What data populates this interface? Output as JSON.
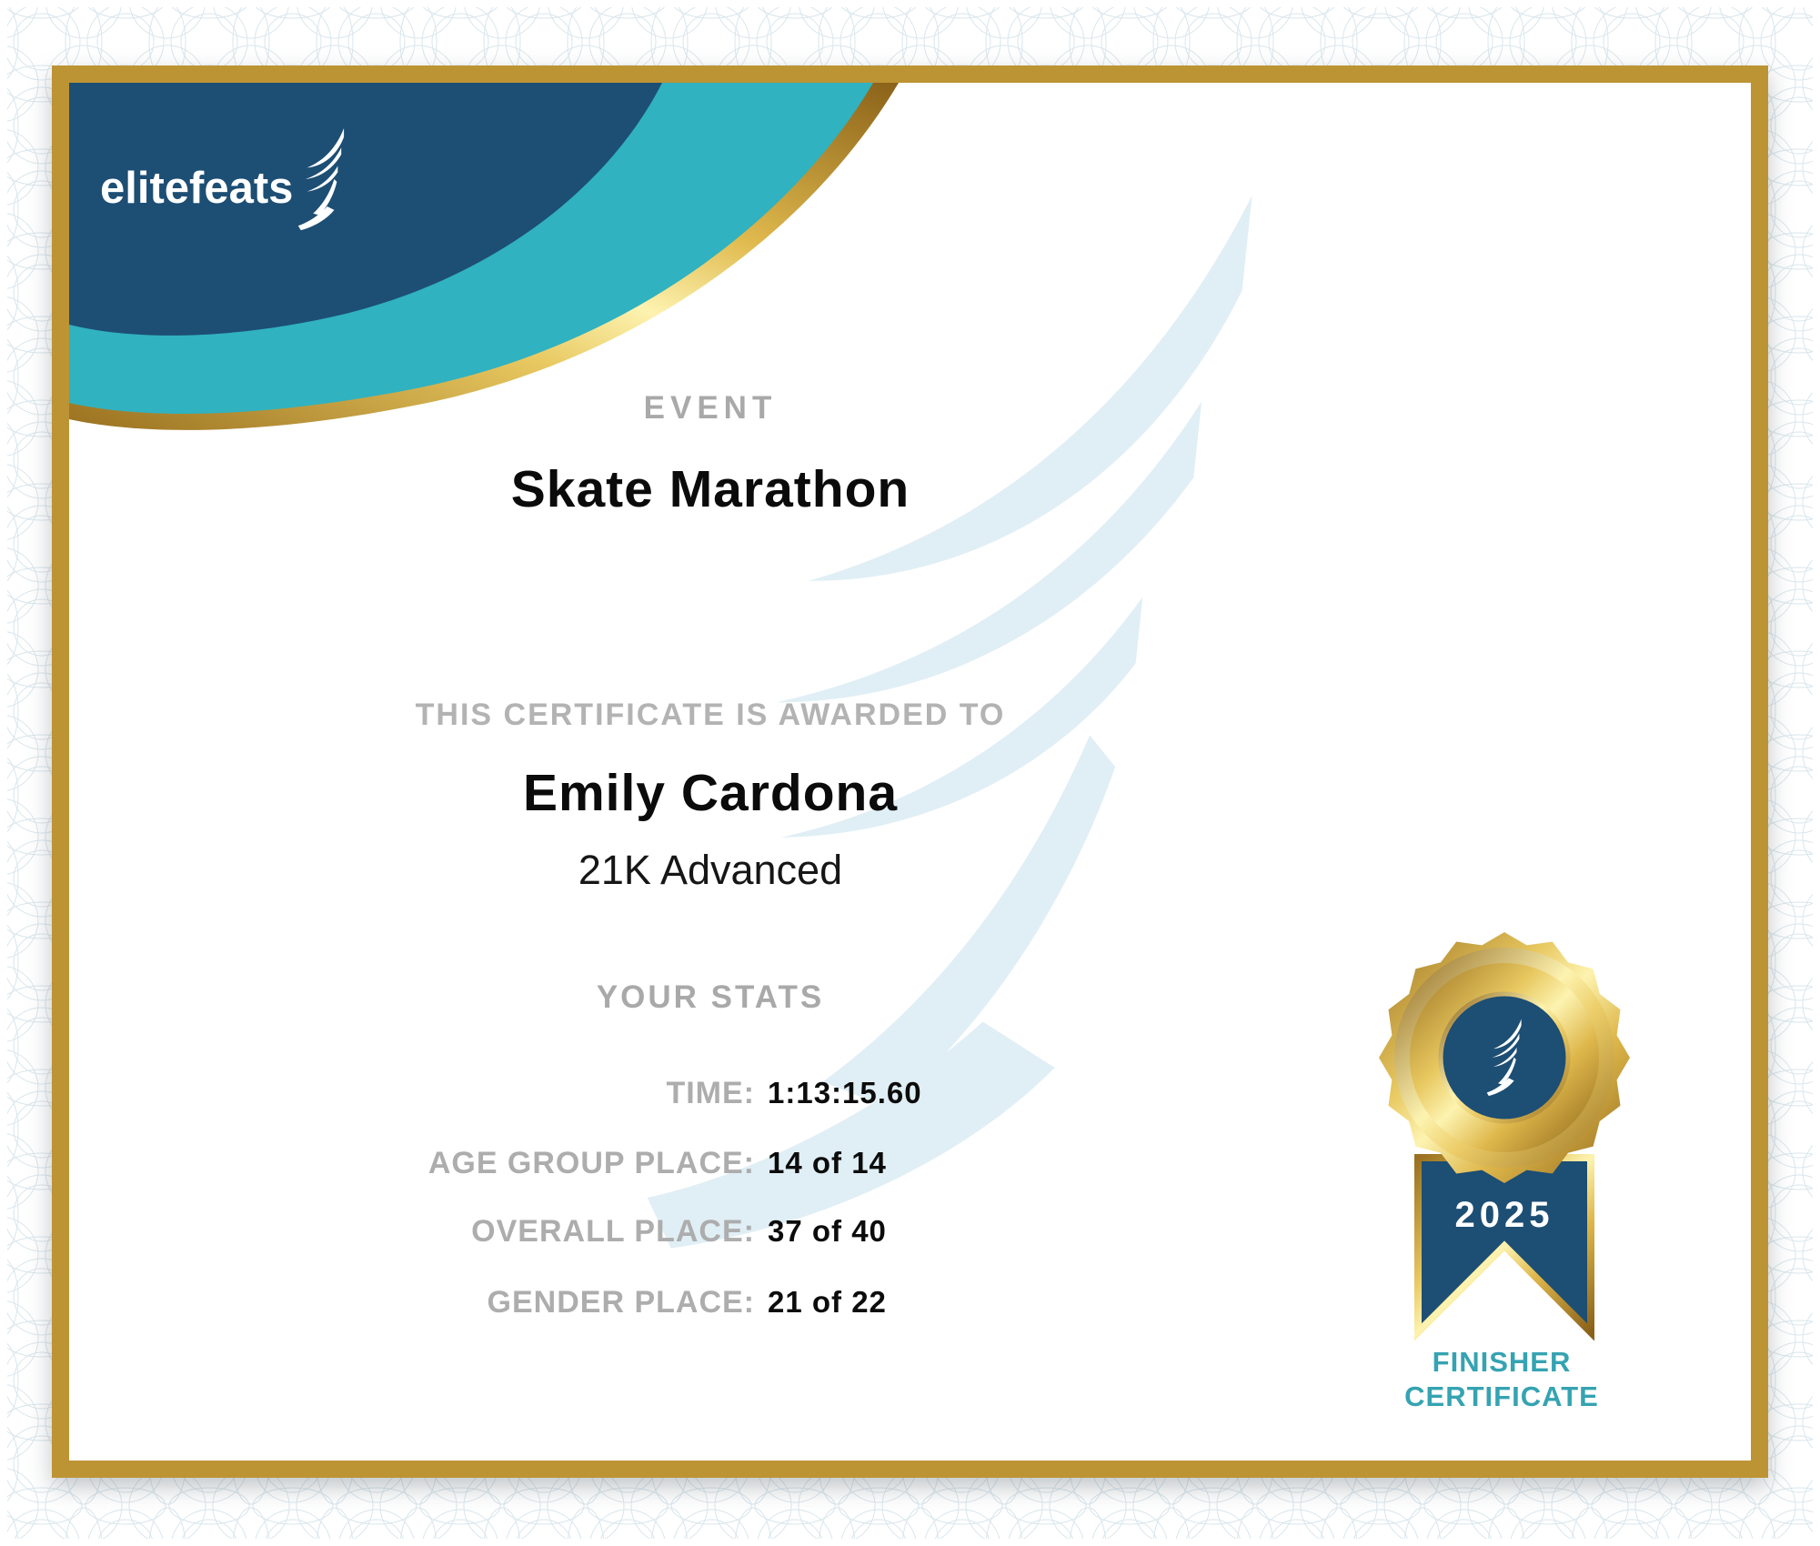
{
  "brand": {
    "name": "elitefeats",
    "icon": "winged-foot-icon"
  },
  "header": {
    "event_label": "EVENT",
    "event_name": "Skate Marathon"
  },
  "award": {
    "intro": "THIS CERTIFICATE IS AWARDED TO",
    "recipient": "Emily Cardona",
    "division": "21K Advanced"
  },
  "stats": {
    "heading": "YOUR STATS",
    "rows": [
      {
        "label": "TIME:",
        "value": "1:13:15.60"
      },
      {
        "label": "AGE GROUP PLACE:",
        "value": "14 of 14"
      },
      {
        "label": "OVERALL PLACE:",
        "value": "37 of 40"
      },
      {
        "label": "GENDER PLACE:",
        "value": "21 of 22"
      }
    ]
  },
  "badge": {
    "year": "2025",
    "caption": [
      "FINISHER",
      "CERTIFICATE"
    ],
    "icon": "winged-foot-medal-icon"
  },
  "colors": {
    "navy": "#1d4e74",
    "teal": "#30b2c0",
    "gold": "#bd9434",
    "gold_highlight": "#fdf3b0",
    "gray_label": "#a9a9a9",
    "text": "#0b0b0b",
    "finisher_teal": "#35a3b2",
    "watermark_blue": "#e0eff5"
  }
}
